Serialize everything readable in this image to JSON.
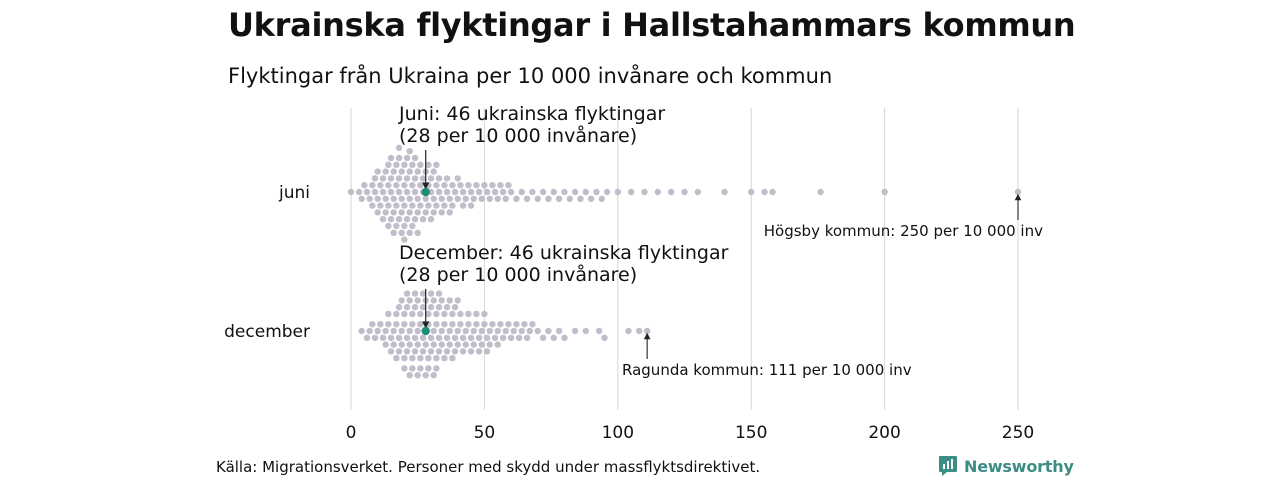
{
  "title": "Ukrainska flyktingar i Hallstahammars kommun",
  "subtitle": "Flyktingar från Ukraina per 10 000 invånare och kommun",
  "source": "Källa: Migrationsverket. Personer med skydd under massflyktsdirektivet.",
  "brand": {
    "name": "Newsworthy",
    "icon": "newsworthy-logo-icon",
    "color": "#3b8d86"
  },
  "chart_data": {
    "type": "scatter",
    "subtype": "beeswarm",
    "x_ticks": [
      0,
      50,
      100,
      150,
      200,
      250
    ],
    "xlim": [
      0,
      250
    ],
    "grid": "vertical",
    "colors": {
      "dots": "#c1bdcb",
      "highlight": "#1e8a78"
    },
    "series": [
      {
        "name": "juni",
        "highlight": {
          "x": 28,
          "label_line1": "Juni: 46 ukrainska flyktingar",
          "label_line2": "(28 per 10 000 invånare)"
        },
        "max": {
          "x": 250,
          "label": "Högsby kommun: 250 per 10 000 inv"
        },
        "values": [
          0,
          3,
          4,
          5,
          6,
          7,
          8,
          8,
          9,
          9,
          10,
          10,
          10,
          11,
          11,
          12,
          12,
          12,
          13,
          13,
          13,
          14,
          14,
          14,
          14,
          15,
          15,
          15,
          15,
          16,
          16,
          16,
          16,
          17,
          17,
          17,
          17,
          18,
          18,
          18,
          18,
          18,
          19,
          19,
          19,
          19,
          20,
          20,
          20,
          20,
          20,
          21,
          21,
          21,
          21,
          22,
          22,
          22,
          22,
          22,
          23,
          23,
          23,
          23,
          24,
          24,
          24,
          24,
          25,
          25,
          25,
          25,
          26,
          26,
          26,
          27,
          27,
          27,
          28,
          28,
          28,
          29,
          29,
          29,
          30,
          30,
          30,
          31,
          31,
          31,
          32,
          32,
          32,
          33,
          33,
          34,
          34,
          35,
          35,
          36,
          36,
          37,
          37,
          38,
          38,
          39,
          40,
          40,
          41,
          42,
          42,
          43,
          44,
          45,
          45,
          46,
          47,
          48,
          49,
          50,
          51,
          52,
          53,
          54,
          55,
          56,
          57,
          58,
          59,
          60,
          62,
          64,
          66,
          68,
          70,
          72,
          74,
          76,
          78,
          80,
          82,
          84,
          86,
          88,
          90,
          92,
          94,
          96,
          100,
          105,
          110,
          115,
          120,
          125,
          130,
          140,
          150,
          155,
          158,
          176,
          200,
          250
        ]
      },
      {
        "name": "december",
        "highlight": {
          "x": 28,
          "label_line1": "December: 46 ukrainska flyktingar",
          "label_line2": "(28 per 10 000 invånare)"
        },
        "max": {
          "x": 111,
          "label": "Ragunda kommun: 111 per 10 000 inv"
        },
        "values": [
          4,
          6,
          7,
          8,
          9,
          10,
          11,
          12,
          13,
          13,
          14,
          14,
          15,
          15,
          16,
          16,
          17,
          17,
          17,
          18,
          18,
          18,
          19,
          19,
          19,
          20,
          20,
          20,
          20,
          21,
          21,
          21,
          21,
          22,
          22,
          22,
          22,
          23,
          23,
          23,
          23,
          24,
          24,
          24,
          24,
          25,
          25,
          25,
          25,
          26,
          26,
          26,
          26,
          27,
          27,
          27,
          27,
          28,
          28,
          28,
          28,
          29,
          29,
          29,
          29,
          30,
          30,
          30,
          30,
          31,
          31,
          31,
          31,
          32,
          32,
          32,
          32,
          33,
          33,
          33,
          33,
          34,
          34,
          34,
          35,
          35,
          35,
          36,
          36,
          36,
          37,
          37,
          37,
          38,
          38,
          38,
          39,
          39,
          39,
          40,
          40,
          40,
          41,
          41,
          42,
          42,
          43,
          43,
          44,
          44,
          45,
          45,
          46,
          46,
          47,
          47,
          48,
          48,
          49,
          49,
          50,
          50,
          51,
          51,
          52,
          52,
          53,
          54,
          55,
          55,
          56,
          57,
          58,
          59,
          60,
          61,
          62,
          63,
          64,
          65,
          66,
          67,
          68,
          70,
          72,
          74,
          76,
          78,
          80,
          84,
          88,
          93,
          95,
          104,
          108,
          111
        ]
      }
    ]
  }
}
